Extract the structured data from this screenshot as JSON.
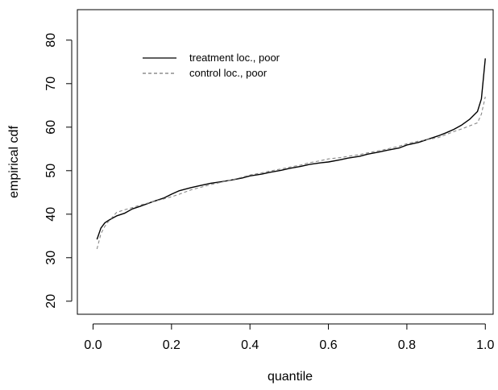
{
  "chart_data": {
    "type": "line",
    "title": "",
    "xlabel": "quantile",
    "ylabel": "empirical cdf",
    "xlim": [
      -0.04,
      1.02
    ],
    "ylim": [
      17,
      87
    ],
    "x_ticks": [
      0.0,
      0.2,
      0.4,
      0.6,
      0.8,
      1.0
    ],
    "x_tick_labels": [
      "0.0",
      "0.2",
      "0.4",
      "0.6",
      "0.8",
      "1.0"
    ],
    "y_ticks": [
      20,
      30,
      40,
      50,
      60,
      70,
      80
    ],
    "y_tick_labels": [
      "20",
      "30",
      "40",
      "50",
      "60",
      "70",
      "80"
    ],
    "grid": false,
    "legend": {
      "position": "top-left",
      "entries": [
        "treatment loc., poor",
        "control loc., poor"
      ]
    },
    "series": [
      {
        "name": "treatment loc., poor",
        "color": "#000000",
        "dash": "solid",
        "x": [
          0.01,
          0.02,
          0.03,
          0.04,
          0.05,
          0.06,
          0.08,
          0.1,
          0.12,
          0.15,
          0.18,
          0.2,
          0.22,
          0.25,
          0.28,
          0.3,
          0.33,
          0.35,
          0.38,
          0.4,
          0.43,
          0.45,
          0.48,
          0.5,
          0.53,
          0.55,
          0.58,
          0.6,
          0.63,
          0.65,
          0.68,
          0.7,
          0.73,
          0.75,
          0.78,
          0.8,
          0.83,
          0.85,
          0.88,
          0.9,
          0.92,
          0.94,
          0.96,
          0.98,
          0.99,
          1.0
        ],
        "y": [
          34.2,
          36.8,
          38.0,
          38.6,
          39.1,
          39.6,
          40.2,
          41.2,
          41.8,
          42.8,
          43.7,
          44.6,
          45.4,
          46.1,
          46.7,
          47.1,
          47.5,
          47.8,
          48.3,
          48.8,
          49.2,
          49.6,
          50.1,
          50.5,
          51.0,
          51.4,
          51.8,
          52.0,
          52.5,
          52.9,
          53.3,
          53.8,
          54.3,
          54.7,
          55.2,
          55.9,
          56.5,
          57.1,
          58.0,
          58.7,
          59.5,
          60.5,
          61.8,
          63.6,
          66.5,
          75.8
        ]
      },
      {
        "name": "control loc., poor",
        "color": "#888888",
        "dash": "dashed",
        "x": [
          0.01,
          0.02,
          0.03,
          0.04,
          0.05,
          0.06,
          0.08,
          0.1,
          0.12,
          0.15,
          0.18,
          0.2,
          0.22,
          0.25,
          0.28,
          0.3,
          0.33,
          0.35,
          0.38,
          0.4,
          0.43,
          0.45,
          0.48,
          0.5,
          0.53,
          0.55,
          0.58,
          0.6,
          0.63,
          0.65,
          0.68,
          0.7,
          0.73,
          0.75,
          0.78,
          0.8,
          0.83,
          0.85,
          0.88,
          0.9,
          0.92,
          0.94,
          0.96,
          0.98,
          0.99,
          1.0
        ],
        "y": [
          32.0,
          35.5,
          37.2,
          38.4,
          39.4,
          40.4,
          41.0,
          41.5,
          42.1,
          42.8,
          43.5,
          44.0,
          44.6,
          45.6,
          46.3,
          46.8,
          47.4,
          47.8,
          48.5,
          49.0,
          49.5,
          49.9,
          50.4,
          50.8,
          51.3,
          51.8,
          52.3,
          52.7,
          53.0,
          53.3,
          53.7,
          54.1,
          54.6,
          55.0,
          55.6,
          56.2,
          56.8,
          57.1,
          57.6,
          58.3,
          59.0,
          59.6,
          60.3,
          61.0,
          63.0,
          67.0
        ]
      }
    ]
  }
}
